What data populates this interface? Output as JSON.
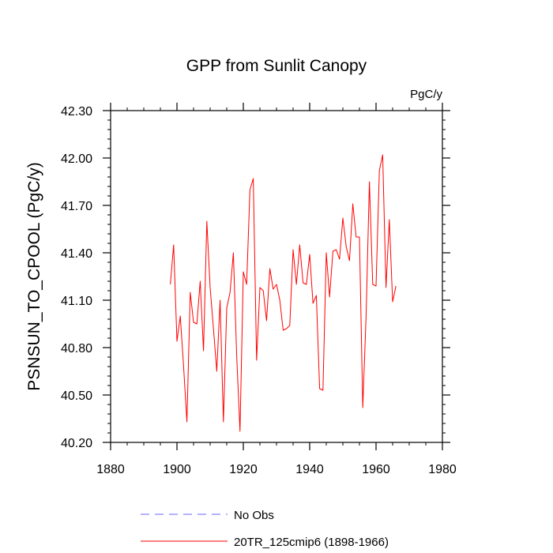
{
  "chart_data": {
    "type": "line",
    "title": "GPP from Sunlit Canopy",
    "units": "PgC/y",
    "xlabel": "",
    "ylabel": "PSNSUN_TO_CPOOL  (PgC/y)",
    "xlim": [
      1880,
      1980
    ],
    "ylim": [
      40.2,
      42.3
    ],
    "xticks": [
      1880,
      1900,
      1920,
      1940,
      1960,
      1980
    ],
    "yticks": [
      40.2,
      40.5,
      40.8,
      41.1,
      41.4,
      41.7,
      42.0,
      42.3
    ],
    "xtick_labels": [
      "1880",
      "1900",
      "1920",
      "1940",
      "1960",
      "1980"
    ],
    "ytick_labels": [
      "40.20",
      "40.50",
      "40.80",
      "41.10",
      "41.40",
      "41.70",
      "42.00",
      "42.30"
    ],
    "colors": {
      "model": "#ff0000",
      "obs": "#6666ff",
      "axis": "#000000"
    },
    "legend": [
      {
        "name": "No Obs",
        "style": "dashed",
        "color": "#6666ff"
      },
      {
        "name": "20TR_125cmip6 (1898-1966)",
        "style": "solid",
        "color": "#ff0000"
      }
    ],
    "series": [
      {
        "name": "20TR_125cmip6 (1898-1966)",
        "x": [
          1898,
          1899,
          1900,
          1901,
          1902,
          1903,
          1904,
          1905,
          1906,
          1907,
          1908,
          1909,
          1910,
          1911,
          1912,
          1913,
          1914,
          1915,
          1916,
          1917,
          1918,
          1919,
          1920,
          1921,
          1922,
          1923,
          1924,
          1925,
          1926,
          1927,
          1928,
          1929,
          1930,
          1931,
          1932,
          1933,
          1934,
          1935,
          1936,
          1937,
          1938,
          1939,
          1940,
          1941,
          1942,
          1943,
          1944,
          1945,
          1946,
          1947,
          1948,
          1949,
          1950,
          1951,
          1952,
          1953,
          1954,
          1955,
          1956,
          1957,
          1958,
          1959,
          1960,
          1961,
          1962,
          1963,
          1964,
          1965,
          1966
        ],
        "values": [
          41.2,
          41.45,
          40.84,
          41.0,
          40.68,
          40.33,
          41.15,
          40.96,
          40.95,
          41.22,
          40.78,
          41.6,
          41.18,
          40.92,
          40.65,
          41.1,
          40.33,
          41.05,
          41.15,
          41.4,
          40.75,
          40.27,
          41.28,
          41.2,
          41.8,
          41.87,
          40.72,
          41.18,
          41.16,
          40.97,
          41.3,
          41.17,
          41.2,
          41.1,
          40.91,
          40.92,
          40.94,
          41.42,
          41.2,
          41.45,
          41.21,
          41.2,
          41.39,
          41.08,
          41.13,
          40.54,
          40.53,
          41.4,
          41.12,
          41.41,
          41.42,
          41.36,
          41.62,
          41.44,
          41.35,
          41.71,
          41.5,
          41.5,
          40.42,
          41.0,
          41.85,
          41.2,
          41.19,
          41.92,
          42.02,
          41.18,
          41.61,
          41.09,
          41.19
        ]
      }
    ]
  }
}
